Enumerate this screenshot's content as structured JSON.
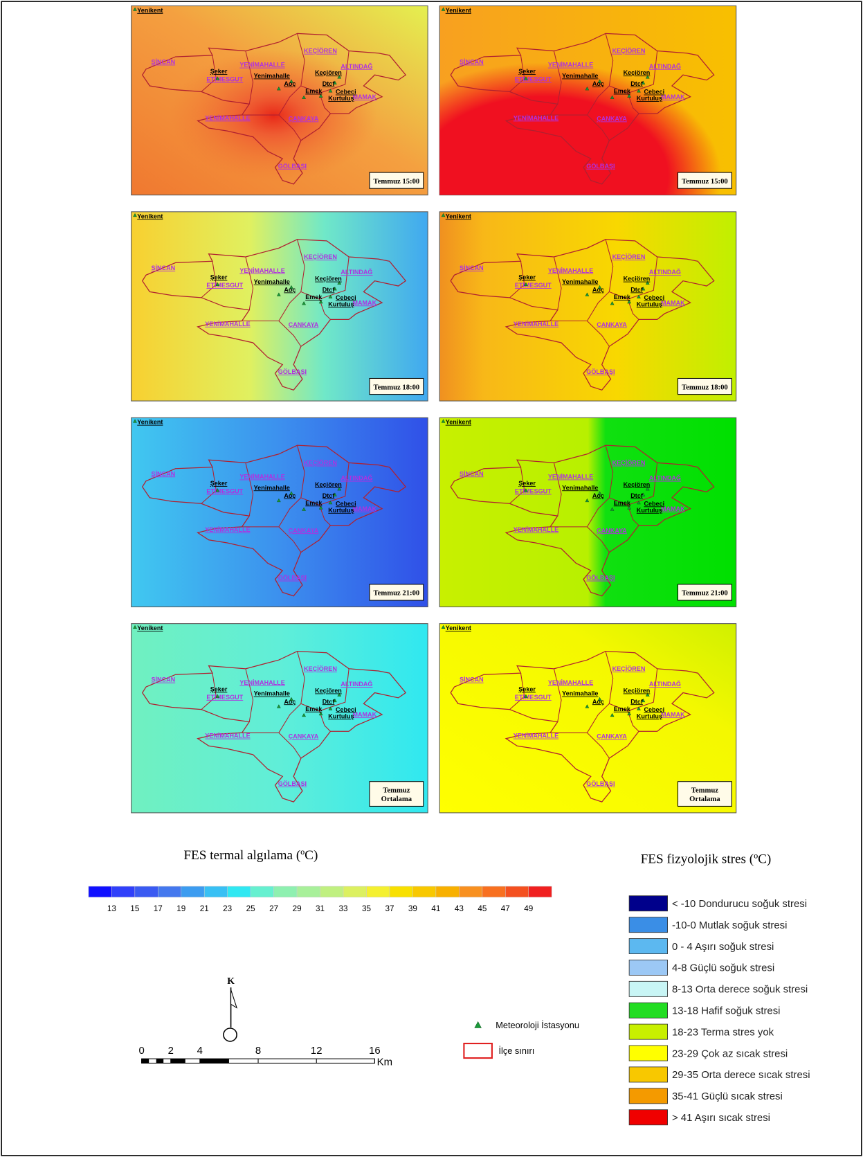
{
  "maps": {
    "panels": [
      {
        "label": [
          "Temmuz 15:00"
        ]
      },
      {
        "label": [
          "Temmuz 15:00"
        ]
      },
      {
        "label": [
          "Temmuz 18:00"
        ]
      },
      {
        "label": [
          "Temmuz 18:00"
        ]
      },
      {
        "label": [
          "Temmuz 21:00"
        ]
      },
      {
        "label": [
          "Temmuz 21:00"
        ]
      },
      {
        "label": [
          "Temmuz",
          "Ortalama"
        ]
      },
      {
        "label": [
          "Temmuz",
          "Ortalama"
        ]
      }
    ],
    "places": {
      "corner_station": "Yenikent",
      "districts": [
        "SİNCAN",
        "YENİMAHALLE",
        "KEÇİÖREN",
        "ALTINDAĞ",
        "ETİMESGUT",
        "MAMAK",
        "YENİMAHALLE",
        "ÇANKAYA",
        "GÖLBAŞI"
      ],
      "stations": [
        "Şeker",
        "Yenimahalle",
        "Aoç",
        "Keçiören",
        "Dtcf",
        "Emek",
        "Cebeci",
        "Kurtuluş"
      ]
    }
  },
  "legend_thermal": {
    "title": "FES termal algılama (ºC)",
    "ticks": [
      13,
      15,
      17,
      19,
      21,
      23,
      25,
      27,
      29,
      31,
      33,
      35,
      37,
      39,
      41,
      43,
      45,
      47,
      49
    ],
    "colors": [
      "#1010ff",
      "#3040fa",
      "#3a5af2",
      "#4478ee",
      "#3c9cf0",
      "#38c0f4",
      "#30e8f2",
      "#66f0d0",
      "#8ef0b0",
      "#a8f09a",
      "#c0f080",
      "#dcf060",
      "#f4f030",
      "#f8e000",
      "#f8c800",
      "#f8b000",
      "#f89020",
      "#f87020",
      "#f45020",
      "#f02020"
    ]
  },
  "legend_stress": {
    "title": "FES fizyolojik stres (ºC)",
    "classes": [
      {
        "label": "< -10 Dondurucu soğuk stresi",
        "color": "#00008b"
      },
      {
        "label": "-10-0 Mutlak soğuk stresi",
        "color": "#3a8ee6"
      },
      {
        "label": "0 - 4 Aşırı soğuk stresi",
        "color": "#5cb8f0"
      },
      {
        "label": "4-8 Güçlü soğuk stresi",
        "color": "#9cc8f5"
      },
      {
        "label": "8-13 Orta derece soğuk stresi",
        "color": "#c8f5f5"
      },
      {
        "label": "13-18 Hafif soğuk stresi",
        "color": "#22dd22"
      },
      {
        "label": "18-23 Terma stres yok",
        "color": "#c8f000"
      },
      {
        "label": "23-29 Çok az sıcak stresi",
        "color": "#ffff00"
      },
      {
        "label": "29-35 Orta derece sıcak stresi",
        "color": "#f8c800"
      },
      {
        "label": "35-41 Güçlü sıcak stresi",
        "color": "#f49a00"
      },
      {
        "label": "> 41 Aşırı sıcak stresi",
        "color": "#f00000"
      }
    ]
  },
  "scale_bar": {
    "ticks": [
      0,
      2,
      4,
      8,
      12,
      16
    ],
    "unit": "Km"
  },
  "north_arrow": "K",
  "map_legend": {
    "station": "Meteoroloji İstasyonu",
    "boundary": "İlçe sınırı"
  }
}
